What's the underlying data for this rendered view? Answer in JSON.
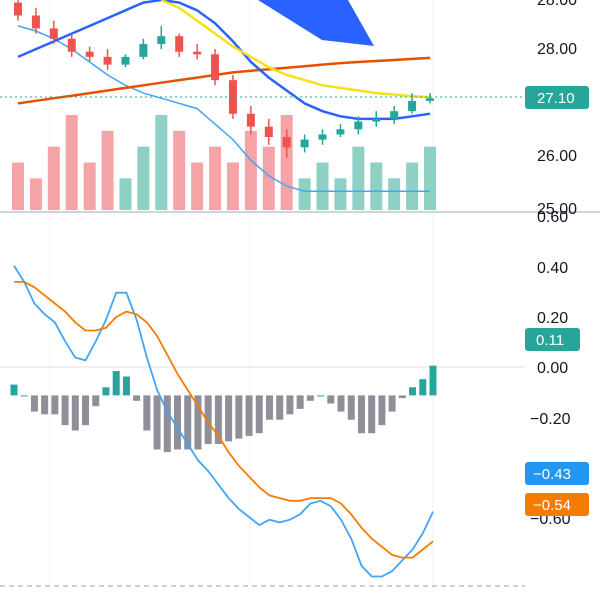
{
  "colors": {
    "up": "#26a69a",
    "up_volume": "#8fd0c5",
    "down": "#ef5350",
    "down_volume": "#f4a3a6",
    "ma_blue": "#2962ff",
    "ma_orange": "#e65100",
    "ma_yellow": "#f5e11a",
    "ma_gray": "#c8c8c8",
    "ma_navy": "#22336b",
    "bollinger": "#42a5f5",
    "macd_line": "#42a5f5",
    "signal_line": "#f57c00",
    "hist_negative": "#8f8f99",
    "hist_positive": "#26a69a",
    "price_dotted": "#26a69a",
    "badge_macd": "#2196f3",
    "badge_signal": "#f57c00"
  },
  "price_axis": {
    "ticks": [
      "28.00",
      "27.10",
      "26.00",
      "25.00"
    ],
    "top_partial_label": "28.00",
    "current_price_badge": "27.10"
  },
  "macd_axis": {
    "ticks": [
      "0.60",
      "0.40",
      "0.20",
      "0.00",
      "−0.20",
      "−0.60"
    ],
    "badges": {
      "histogram": "0.11",
      "macd": "−0.43",
      "signal": "−0.54"
    }
  },
  "chart_data": [
    {
      "type": "candlestick",
      "title": "",
      "ylim": [
        24.9,
        29.0
      ],
      "x": [
        1,
        2,
        3,
        4,
        5,
        6,
        7,
        8,
        9,
        10,
        11,
        12,
        13,
        14,
        15,
        16,
        17,
        18,
        19,
        20,
        21,
        22,
        23,
        24
      ],
      "open": [
        28.95,
        28.7,
        28.45,
        28.25,
        28.0,
        27.9,
        27.75,
        27.9,
        28.15,
        28.3,
        28.0,
        27.95,
        27.45,
        26.8,
        26.55,
        26.35,
        26.15,
        26.3,
        26.4,
        26.5,
        26.65,
        26.7,
        26.85,
        27.05
      ],
      "close": [
        28.7,
        28.45,
        28.25,
        28.0,
        27.9,
        27.75,
        27.9,
        28.15,
        28.3,
        28.0,
        27.95,
        27.45,
        26.8,
        26.55,
        26.35,
        26.15,
        26.3,
        26.4,
        26.5,
        26.65,
        26.7,
        26.85,
        27.05,
        27.1
      ],
      "high": [
        29.0,
        28.85,
        28.6,
        28.35,
        28.1,
        28.05,
        27.95,
        28.25,
        28.5,
        28.35,
        28.15,
        28.05,
        27.55,
        26.95,
        26.7,
        26.5,
        26.4,
        26.5,
        26.6,
        26.75,
        26.85,
        26.95,
        27.2,
        27.2
      ],
      "low": [
        28.6,
        28.35,
        28.15,
        27.9,
        27.8,
        27.65,
        27.7,
        27.85,
        28.05,
        27.9,
        27.85,
        27.35,
        26.7,
        26.4,
        26.2,
        25.95,
        26.05,
        26.2,
        26.35,
        26.4,
        26.55,
        26.6,
        26.8,
        27.0
      ],
      "volume": [
        3,
        2,
        4,
        6,
        3,
        5,
        2,
        4,
        6,
        5,
        3,
        4,
        3,
        5,
        4,
        6,
        2,
        3,
        2,
        4,
        3,
        2,
        3,
        4
      ],
      "moving_averages": [
        {
          "color_key": "ma_orange",
          "values": [
            27.0,
            27.05,
            27.1,
            27.15,
            27.2,
            27.25,
            27.3,
            27.35,
            27.4,
            27.45,
            27.5,
            27.55,
            27.6,
            27.63,
            27.66,
            27.69,
            27.72,
            27.75,
            27.78,
            27.8,
            27.82,
            27.84,
            27.86,
            27.88
          ]
        },
        {
          "color_key": "ma_blue",
          "values": [
            27.9,
            28.05,
            28.2,
            28.35,
            28.5,
            28.65,
            28.8,
            28.95,
            29.0,
            28.95,
            28.8,
            28.55,
            28.2,
            27.8,
            27.5,
            27.25,
            27.0,
            26.85,
            26.75,
            26.7,
            26.7,
            26.7,
            26.75,
            26.8
          ]
        },
        {
          "color_key": "ma_yellow",
          "values": [
            null,
            null,
            null,
            null,
            null,
            null,
            null,
            null,
            29.0,
            28.85,
            28.6,
            28.35,
            28.1,
            27.9,
            27.7,
            27.55,
            27.45,
            27.35,
            27.3,
            27.25,
            27.2,
            27.17,
            27.14,
            27.12
          ]
        }
      ],
      "bollinger_lower": [
        28.5,
        28.4,
        28.25,
        28.05,
        27.8,
        27.55,
        27.35,
        27.2,
        27.1,
        27.0,
        26.9,
        26.6,
        26.3,
        25.9,
        25.6,
        25.4,
        25.3,
        25.3,
        25.3,
        25.3,
        25.3,
        25.3,
        25.3,
        25.3
      ]
    },
    {
      "type": "line",
      "title": "",
      "ylim": [
        -0.72,
        0.66
      ],
      "x": [
        1,
        2,
        3,
        4,
        5,
        6,
        7,
        8,
        9,
        10,
        11,
        12,
        13,
        14,
        15,
        16,
        17,
        18,
        19,
        20,
        21,
        22,
        23,
        24,
        25,
        26,
        27,
        28,
        29,
        30,
        31,
        32,
        33,
        34,
        35,
        36,
        37,
        38,
        39,
        40,
        41,
        42
      ],
      "series": [
        {
          "color_key": "macd_line",
          "values": [
            0.48,
            0.42,
            0.34,
            0.3,
            0.27,
            0.2,
            0.14,
            0.13,
            0.2,
            0.28,
            0.38,
            0.38,
            0.28,
            0.14,
            0.02,
            -0.06,
            -0.12,
            -0.18,
            -0.24,
            -0.28,
            -0.33,
            -0.38,
            -0.42,
            -0.45,
            -0.48,
            -0.46,
            -0.47,
            -0.46,
            -0.44,
            -0.4,
            -0.39,
            -0.41,
            -0.46,
            -0.53,
            -0.63,
            -0.67,
            -0.67,
            -0.65,
            -0.61,
            -0.57,
            -0.51,
            -0.43
          ]
        },
        {
          "color_key": "signal_line",
          "values": [
            0.42,
            0.42,
            0.4,
            0.37,
            0.34,
            0.31,
            0.27,
            0.24,
            0.24,
            0.25,
            0.29,
            0.31,
            0.3,
            0.27,
            0.22,
            0.15,
            0.08,
            0.02,
            -0.04,
            -0.1,
            -0.15,
            -0.21,
            -0.26,
            -0.3,
            -0.34,
            -0.37,
            -0.38,
            -0.39,
            -0.39,
            -0.38,
            -0.38,
            -0.38,
            -0.4,
            -0.44,
            -0.49,
            -0.53,
            -0.56,
            -0.59,
            -0.6,
            -0.6,
            -0.57,
            -0.54
          ]
        }
      ],
      "histogram": [
        0.04,
        0.0,
        -0.06,
        -0.07,
        -0.07,
        -0.11,
        -0.13,
        -0.11,
        -0.04,
        0.03,
        0.09,
        0.07,
        -0.02,
        -0.13,
        -0.2,
        -0.21,
        -0.2,
        -0.2,
        -0.2,
        -0.18,
        -0.18,
        -0.17,
        -0.16,
        -0.15,
        -0.14,
        -0.09,
        -0.09,
        -0.07,
        -0.05,
        -0.02,
        0.0,
        -0.03,
        -0.06,
        -0.09,
        -0.14,
        -0.14,
        -0.11,
        -0.06,
        -0.01,
        0.03,
        0.06,
        0.11
      ]
    }
  ]
}
